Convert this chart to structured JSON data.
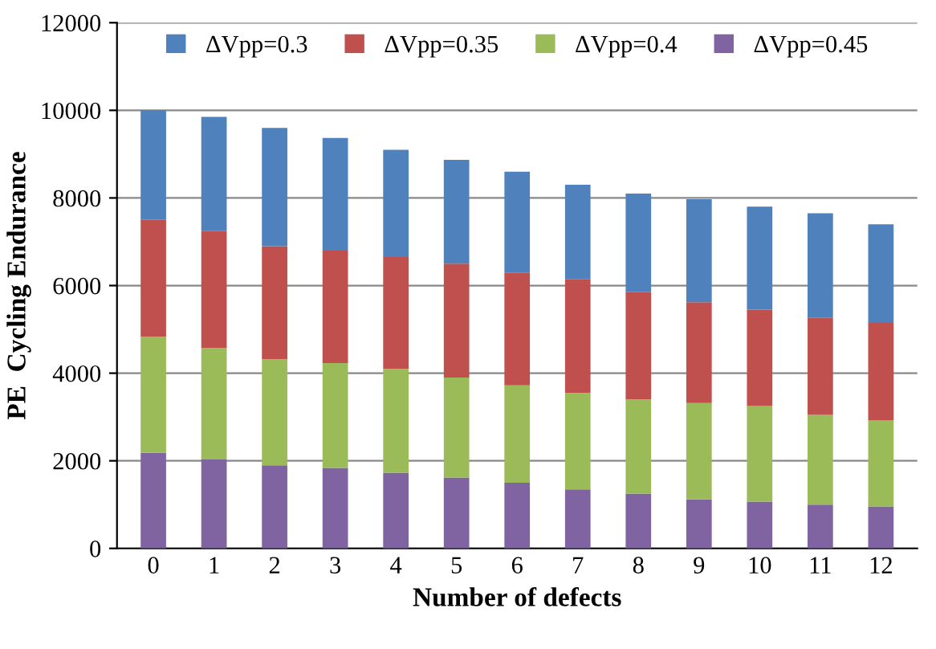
{
  "chart_data": {
    "type": "bar",
    "stacked": true,
    "xlabel": "Number of defects",
    "ylabel": "PE  Cycling Endurance",
    "categories": [
      "0",
      "1",
      "2",
      "3",
      "4",
      "5",
      "6",
      "7",
      "8",
      "9",
      "10",
      "11",
      "12"
    ],
    "series": [
      {
        "name": "ΔVpp=0.45",
        "color": "#8064a2",
        "values": [
          2180,
          2030,
          1900,
          1840,
          1730,
          1620,
          1500,
          1350,
          1250,
          1120,
          1070,
          1000,
          960
        ]
      },
      {
        "name": "ΔVpp=0.4",
        "color": "#9bbb59",
        "values": [
          2650,
          2550,
          2420,
          2390,
          2370,
          2280,
          2220,
          2200,
          2150,
          2200,
          2180,
          2050,
          1960
        ]
      },
      {
        "name": "ΔVpp=0.35",
        "color": "#c0504d",
        "values": [
          2670,
          2670,
          2580,
          2570,
          2550,
          2600,
          2580,
          2600,
          2450,
          2300,
          2200,
          2220,
          2230
        ]
      },
      {
        "name": "ΔVpp=0.3",
        "color": "#4f81bd",
        "values": [
          2500,
          2600,
          2700,
          2570,
          2450,
          2370,
          2300,
          2150,
          2250,
          2350,
          2350,
          2380,
          2250
        ]
      }
    ],
    "ylim": [
      0,
      12000
    ],
    "yticks": [
      0,
      2000,
      4000,
      6000,
      8000,
      10000,
      12000
    ],
    "grid": "y",
    "legend": "top"
  }
}
